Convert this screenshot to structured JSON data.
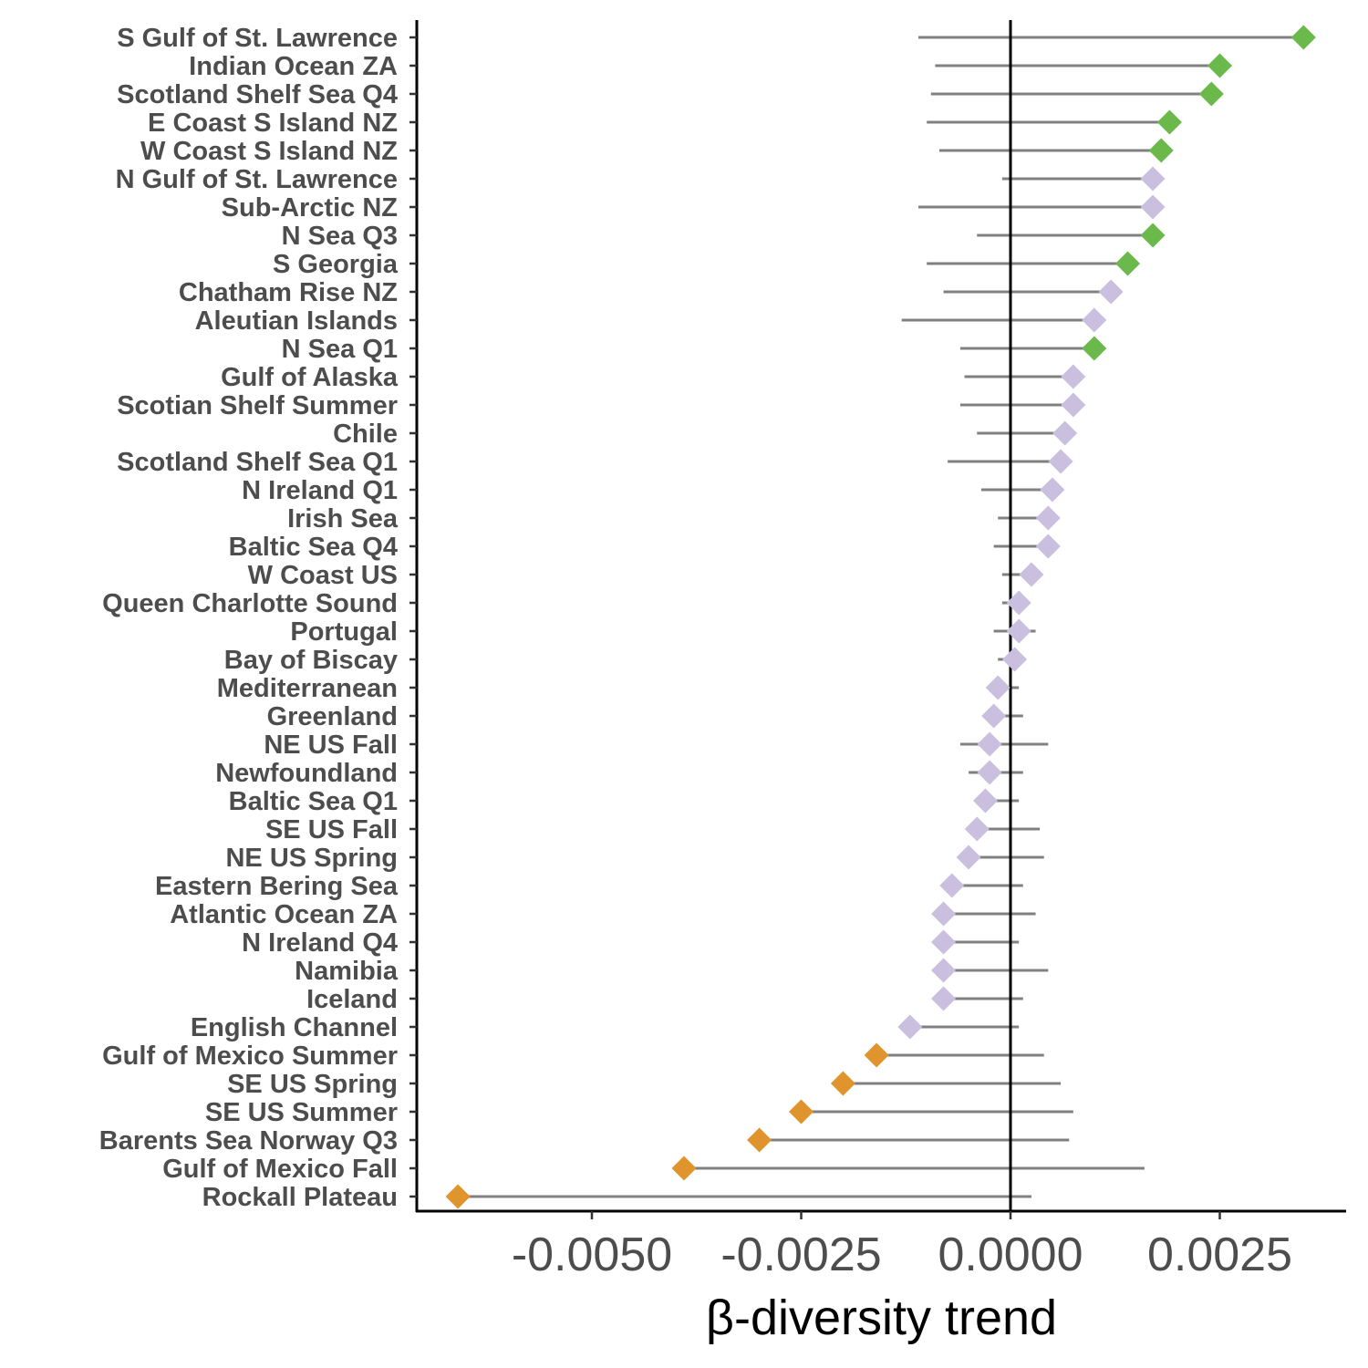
{
  "chart_data": {
    "type": "scatter",
    "title": "",
    "xlabel": "β-diversity trend",
    "ylabel": "",
    "xlim": [
      -0.0072,
      0.004
    ],
    "x_ticks": [
      -0.005,
      -0.0025,
      0.0,
      0.0025
    ],
    "x_tick_labels": [
      "-0.0050",
      "-0.0025",
      "0.0000",
      "0.0025"
    ],
    "reference_line_x": 0.0,
    "grid": false,
    "legend": "none",
    "marker": "diamond",
    "colors": {
      "increase": "#6ab94a",
      "no_trend": "#cbbfe0",
      "decrease": "#e0942e",
      "interval": "#808080"
    },
    "categories": [
      {
        "label": "S Gulf of St. Lawrence",
        "value": 0.0035,
        "low": -0.0011,
        "high": 0.0035,
        "group": "increase"
      },
      {
        "label": "Indian Ocean ZA",
        "value": 0.0025,
        "low": -0.0009,
        "high": 0.0025,
        "group": "increase"
      },
      {
        "label": "Scotland Shelf Sea Q4",
        "value": 0.0024,
        "low": -0.00095,
        "high": 0.0024,
        "group": "increase"
      },
      {
        "label": "E Coast S Island NZ",
        "value": 0.0019,
        "low": -0.001,
        "high": 0.0019,
        "group": "increase"
      },
      {
        "label": "W Coast S Island NZ",
        "value": 0.0018,
        "low": -0.00085,
        "high": 0.0018,
        "group": "increase"
      },
      {
        "label": "N Gulf of St. Lawrence",
        "value": 0.0017,
        "low": -0.0001,
        "high": 0.0017,
        "group": "no_trend"
      },
      {
        "label": "Sub-Arctic NZ",
        "value": 0.0017,
        "low": -0.0011,
        "high": 0.0017,
        "group": "no_trend"
      },
      {
        "label": "N Sea Q3",
        "value": 0.0017,
        "low": -0.0004,
        "high": 0.0017,
        "group": "increase"
      },
      {
        "label": "S Georgia",
        "value": 0.0014,
        "low": -0.001,
        "high": 0.0014,
        "group": "increase"
      },
      {
        "label": "Chatham Rise NZ",
        "value": 0.0012,
        "low": -0.0008,
        "high": 0.0012,
        "group": "no_trend"
      },
      {
        "label": "Aleutian Islands",
        "value": 0.001,
        "low": -0.0013,
        "high": 0.001,
        "group": "no_trend"
      },
      {
        "label": "N Sea Q1",
        "value": 0.001,
        "low": -0.0006,
        "high": 0.001,
        "group": "increase"
      },
      {
        "label": "Gulf of Alaska",
        "value": 0.00075,
        "low": -0.00055,
        "high": 0.00075,
        "group": "no_trend"
      },
      {
        "label": "Scotian Shelf Summer",
        "value": 0.00075,
        "low": -0.0006,
        "high": 0.00075,
        "group": "no_trend"
      },
      {
        "label": "Chile",
        "value": 0.00065,
        "low": -0.0004,
        "high": 0.00065,
        "group": "no_trend"
      },
      {
        "label": "Scotland Shelf Sea Q1",
        "value": 0.0006,
        "low": -0.00075,
        "high": 0.0006,
        "group": "no_trend"
      },
      {
        "label": "N Ireland Q1",
        "value": 0.0005,
        "low": -0.00035,
        "high": 0.0005,
        "group": "no_trend"
      },
      {
        "label": "Irish Sea",
        "value": 0.00045,
        "low": -0.00015,
        "high": 0.00045,
        "group": "no_trend"
      },
      {
        "label": "Baltic Sea Q4",
        "value": 0.00045,
        "low": -0.0002,
        "high": 0.00045,
        "group": "no_trend"
      },
      {
        "label": "W Coast US",
        "value": 0.00025,
        "low": -0.0001,
        "high": 0.00025,
        "group": "no_trend"
      },
      {
        "label": "Queen Charlotte Sound",
        "value": 0.0001,
        "low": -0.0001,
        "high": 0.0001,
        "group": "no_trend"
      },
      {
        "label": "Portugal",
        "value": 0.0001,
        "low": -0.0002,
        "high": 0.0003,
        "group": "no_trend"
      },
      {
        "label": "Bay of Biscay",
        "value": 5e-05,
        "low": -0.00015,
        "high": 5e-05,
        "group": "no_trend"
      },
      {
        "label": "Mediterranean",
        "value": -0.00015,
        "low": -0.00015,
        "high": 0.0001,
        "group": "no_trend"
      },
      {
        "label": "Greenland",
        "value": -0.0002,
        "low": -0.0002,
        "high": 0.00015,
        "group": "no_trend"
      },
      {
        "label": "NE US Fall",
        "value": -0.00025,
        "low": -0.0006,
        "high": 0.00045,
        "group": "no_trend"
      },
      {
        "label": "Newfoundland",
        "value": -0.00025,
        "low": -0.0005,
        "high": 0.00015,
        "group": "no_trend"
      },
      {
        "label": "Baltic Sea Q1",
        "value": -0.0003,
        "low": -0.0003,
        "high": 0.0001,
        "group": "no_trend"
      },
      {
        "label": "SE US Fall",
        "value": -0.0004,
        "low": -0.0004,
        "high": 0.00035,
        "group": "no_trend"
      },
      {
        "label": "NE US Spring",
        "value": -0.0005,
        "low": -0.0005,
        "high": 0.0004,
        "group": "no_trend"
      },
      {
        "label": "Eastern Bering Sea",
        "value": -0.0007,
        "low": -0.0007,
        "high": 0.00015,
        "group": "no_trend"
      },
      {
        "label": "Atlantic Ocean ZA",
        "value": -0.0008,
        "low": -0.0008,
        "high": 0.0003,
        "group": "no_trend"
      },
      {
        "label": "N Ireland Q4",
        "value": -0.0008,
        "low": -0.0008,
        "high": 0.0001,
        "group": "no_trend"
      },
      {
        "label": "Namibia",
        "value": -0.0008,
        "low": -0.0008,
        "high": 0.00045,
        "group": "no_trend"
      },
      {
        "label": "Iceland",
        "value": -0.0008,
        "low": -0.0008,
        "high": 0.00015,
        "group": "no_trend"
      },
      {
        "label": "English Channel",
        "value": -0.0012,
        "low": -0.0012,
        "high": 0.0001,
        "group": "no_trend"
      },
      {
        "label": "Gulf of Mexico Summer",
        "value": -0.0016,
        "low": -0.0016,
        "high": 0.0004,
        "group": "decrease"
      },
      {
        "label": "SE US Spring",
        "value": -0.002,
        "low": -0.002,
        "high": 0.0006,
        "group": "decrease"
      },
      {
        "label": "SE US Summer",
        "value": -0.0025,
        "low": -0.0025,
        "high": 0.00075,
        "group": "decrease"
      },
      {
        "label": "Barents Sea Norway Q3",
        "value": -0.003,
        "low": -0.003,
        "high": 0.0007,
        "group": "decrease"
      },
      {
        "label": "Gulf of Mexico Fall",
        "value": -0.0039,
        "low": -0.0039,
        "high": 0.0016,
        "group": "decrease"
      },
      {
        "label": "Rockall Plateau",
        "value": -0.0066,
        "low": -0.0066,
        "high": 0.00025,
        "group": "decrease"
      }
    ]
  }
}
